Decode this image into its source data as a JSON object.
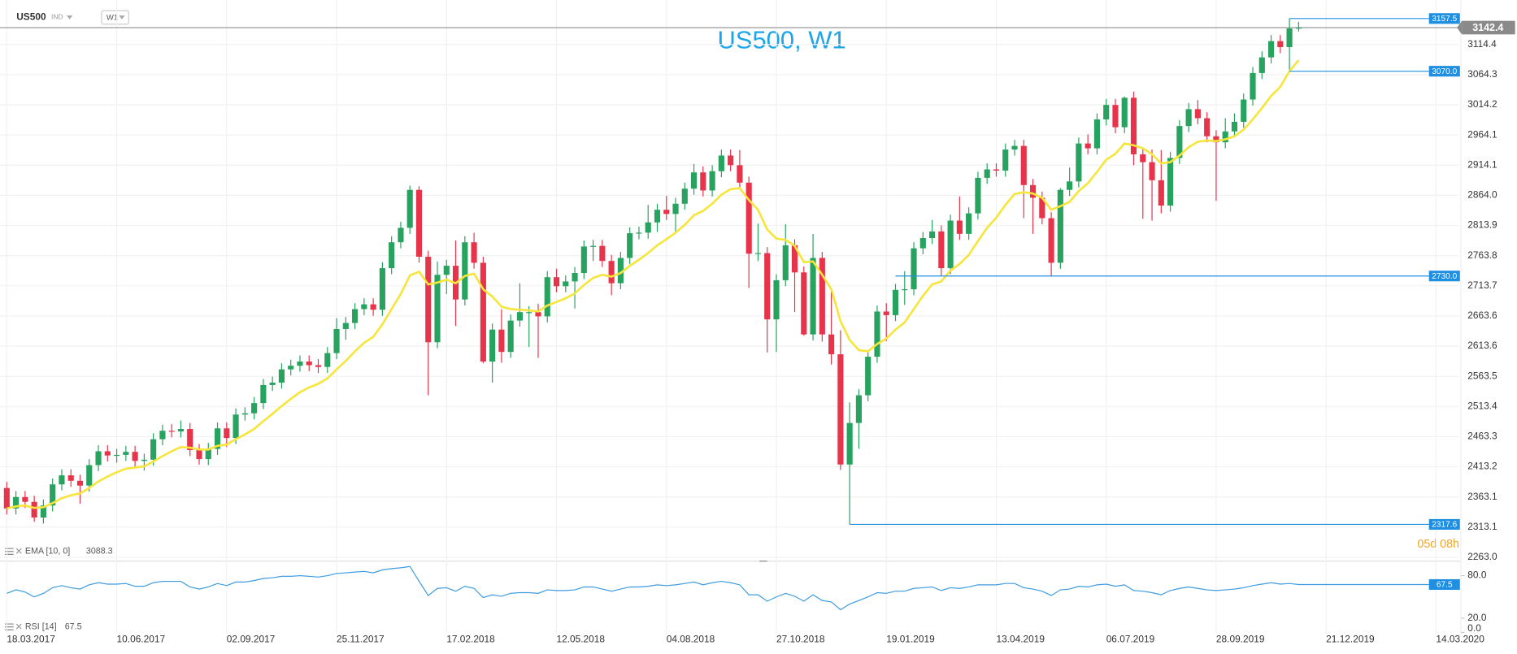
{
  "header": {
    "symbol": "US500",
    "market": "IND",
    "timeframe": "W1"
  },
  "chart_data": {
    "type": "candlestick",
    "title": "US500, W1",
    "xticks": [
      "18.03.2017",
      "10.06.2017",
      "02.09.2017",
      "25.11.2017",
      "17.02.2018",
      "12.05.2018",
      "04.08.2018",
      "27.10.2018",
      "19.01.2019",
      "13.04.2019",
      "06.07.2019",
      "28.09.2019",
      "21.12.2019",
      "14.03.2020"
    ],
    "open": [
      2378,
      2344,
      2363,
      2355,
      2329,
      2349,
      2384,
      2399,
      2390,
      2382,
      2416,
      2439,
      2432,
      2433,
      2438,
      2423,
      2425,
      2459,
      2473,
      2472,
      2476,
      2441,
      2426,
      2443,
      2477,
      2461,
      2500,
      2502,
      2519,
      2549,
      2553,
      2575,
      2581,
      2588,
      2582,
      2579,
      2602,
      2642,
      2652,
      2675,
      2683,
      2674,
      2743,
      2786,
      2810,
      2873,
      2762,
      2620,
      2732,
      2747,
      2691,
      2786,
      2752,
      2588,
      2641,
      2604,
      2656,
      2670,
      2670,
      2663,
      2728,
      2713,
      2721,
      2735,
      2779,
      2780,
      2755,
      2718,
      2760,
      2801,
      2802,
      2819,
      2840,
      2833,
      2850,
      2875,
      2902,
      2872,
      2904,
      2930,
      2914,
      2885,
      2767,
      2768,
      2658,
      2723,
      2781,
      2736,
      2633,
      2760,
      2633,
      2600,
      2417,
      2486,
      2532,
      2596,
      2671,
      2665,
      2707,
      2708,
      2776,
      2793,
      2804,
      2743,
      2822,
      2800,
      2834,
      2893,
      2907,
      2905,
      2940,
      2946,
      2881,
      2860,
      2826,
      2752,
      2873,
      2887,
      2950,
      2942,
      2990,
      3014,
      2977,
      3026,
      2932,
      2919,
      2889,
      2847,
      2926,
      2979,
      3007,
      2992,
      2962,
      2952,
      2970,
      2986,
      3023,
      3067,
      3093,
      3120,
      3110,
      3141
    ],
    "high": [
      2388,
      2373,
      2373,
      2365,
      2359,
      2394,
      2409,
      2409,
      2400,
      2426,
      2449,
      2449,
      2443,
      2448,
      2448,
      2435,
      2469,
      2483,
      2484,
      2490,
      2486,
      2451,
      2453,
      2487,
      2487,
      2510,
      2512,
      2529,
      2559,
      2563,
      2585,
      2591,
      2598,
      2598,
      2592,
      2612,
      2660,
      2662,
      2685,
      2693,
      2693,
      2753,
      2796,
      2820,
      2880,
      2879,
      2772,
      2754,
      2757,
      2789,
      2796,
      2802,
      2762,
      2651,
      2675,
      2666,
      2718,
      2680,
      2684,
      2738,
      2742,
      2731,
      2745,
      2789,
      2790,
      2790,
      2765,
      2770,
      2811,
      2812,
      2848,
      2850,
      2863,
      2860,
      2885,
      2916,
      2912,
      2914,
      2940,
      2940,
      2939,
      2895,
      2817,
      2778,
      2733,
      2816,
      2791,
      2746,
      2800,
      2770,
      2708,
      2640,
      2520,
      2542,
      2606,
      2681,
      2685,
      2717,
      2738,
      2786,
      2803,
      2823,
      2814,
      2832,
      2862,
      2844,
      2903,
      2917,
      2917,
      2950,
      2956,
      2956,
      2891,
      2870,
      2836,
      2876,
      2910,
      2960,
      2965,
      3000,
      3024,
      3024,
      3028,
      3036,
      2942,
      2940,
      2939,
      2936,
      2989,
      3017,
      3022,
      3002,
      2972,
      2992,
      3000,
      3033,
      3077,
      3103,
      3130,
      3130,
      3157.5,
      3152
    ],
    "low": [
      2334,
      2334,
      2345,
      2322,
      2319,
      2339,
      2374,
      2380,
      2352,
      2372,
      2406,
      2422,
      2420,
      2423,
      2413,
      2407,
      2415,
      2449,
      2462,
      2462,
      2431,
      2417,
      2416,
      2433,
      2446,
      2451,
      2490,
      2492,
      2509,
      2539,
      2543,
      2565,
      2571,
      2572,
      2569,
      2569,
      2592,
      2624,
      2642,
      2665,
      2664,
      2664,
      2733,
      2776,
      2800,
      2752,
      2532,
      2610,
      2700,
      2647,
      2681,
      2742,
      2585,
      2553,
      2586,
      2594,
      2646,
      2612,
      2594,
      2653,
      2703,
      2703,
      2676,
      2725,
      2755,
      2745,
      2698,
      2708,
      2750,
      2791,
      2792,
      2803,
      2823,
      2802,
      2840,
      2865,
      2862,
      2862,
      2894,
      2904,
      2875,
      2710,
      2755,
      2603,
      2604,
      2713,
      2670,
      2631,
      2623,
      2621,
      2583,
      2408,
      2317.6,
      2443,
      2522,
      2586,
      2622,
      2655,
      2682,
      2698,
      2766,
      2783,
      2730,
      2733,
      2790,
      2790,
      2824,
      2883,
      2895,
      2895,
      2930,
      2826,
      2800,
      2816,
      2729,
      2742,
      2863,
      2877,
      2932,
      2932,
      2980,
      2967,
      2967,
      2914,
      2825,
      2822,
      2834,
      2837,
      2916,
      2969,
      2982,
      2952,
      2855,
      2942,
      2960,
      2976,
      3013,
      3057,
      3083,
      3100,
      3070,
      3136
    ],
    "close": [
      2344,
      2363,
      2355,
      2329,
      2349,
      2384,
      2399,
      2390,
      2382,
      2416,
      2439,
      2432,
      2433,
      2438,
      2423,
      2425,
      2459,
      2473,
      2472,
      2476,
      2441,
      2426,
      2443,
      2477,
      2461,
      2500,
      2502,
      2519,
      2549,
      2553,
      2575,
      2581,
      2588,
      2582,
      2579,
      2602,
      2642,
      2652,
      2675,
      2683,
      2674,
      2743,
      2786,
      2810,
      2873,
      2762,
      2620,
      2732,
      2747,
      2691,
      2786,
      2752,
      2588,
      2641,
      2604,
      2656,
      2670,
      2670,
      2663,
      2728,
      2713,
      2721,
      2735,
      2779,
      2780,
      2755,
      2718,
      2760,
      2801,
      2802,
      2819,
      2840,
      2833,
      2850,
      2875,
      2902,
      2872,
      2904,
      2930,
      2914,
      2885,
      2767,
      2768,
      2658,
      2723,
      2781,
      2736,
      2633,
      2760,
      2633,
      2600,
      2417,
      2486,
      2532,
      2596,
      2671,
      2665,
      2707,
      2708,
      2776,
      2793,
      2804,
      2743,
      2822,
      2800,
      2834,
      2893,
      2907,
      2905,
      2940,
      2946,
      2881,
      2860,
      2826,
      2752,
      2873,
      2887,
      2950,
      2942,
      2990,
      3014,
      2977,
      3026,
      2932,
      2919,
      2889,
      2847,
      2926,
      2979,
      3007,
      2992,
      2962,
      2952,
      2970,
      2986,
      3023,
      3067,
      3093,
      3120,
      3110,
      3141,
      3142.4
    ],
    "up_color": "#27a35f",
    "down_color": "#e8344b",
    "ylim": [
      2256.6,
      3175.4
    ],
    "yticks": [
      3114.4,
      3064.3,
      3014.2,
      2964.1,
      2914.1,
      {
        "value": 2864.0,
        "label": "2864.0"
      },
      2813.9,
      2763.8,
      2713.7,
      2663.6,
      2613.6,
      2563.5,
      2513.4,
      2463.3,
      2413.2,
      2363.1,
      2313.1,
      {
        "value": 2263.0,
        "label": "2263.0"
      }
    ],
    "grid": true,
    "levels": [
      3157.5,
      {
        "value": 3070.0,
        "label": "3070.0"
      },
      {
        "value": 2730.0,
        "label": "2730.0"
      },
      2317.6
    ],
    "level_color": "#1e8fe1",
    "countdown": "05d 08h",
    "ema": {
      "name": "EMA [10, 0]",
      "color": "#f7e53b",
      "values": [
        2344,
        2347.5,
        2349,
        2345,
        2346,
        2353,
        2361,
        2366,
        2369,
        2378,
        2389,
        2397,
        2404,
        2410,
        2412,
        2414,
        2422,
        2431,
        2439,
        2446,
        2445,
        2442,
        2442,
        2448,
        2450,
        2459,
        2467,
        2476,
        2489,
        2501,
        2514,
        2526,
        2537,
        2545,
        2551,
        2560,
        2575,
        2589,
        2605,
        2619,
        2629,
        2650,
        2675,
        2700,
        2731,
        2737,
        2716,
        2719,
        2724,
        2718,
        2730,
        2734,
        2708,
        2696,
        2679,
        2675,
        2674,
        2673,
        2671,
        2681,
        2687,
        2693,
        2701,
        2715,
        2727,
        2732,
        2729,
        2735,
        2747,
        2757,
        2768,
        2781,
        2791,
        2802,
        2815,
        2831,
        2838,
        2850,
        2865,
        2874,
        2876,
        2856,
        2840,
        2807,
        2792,
        2790,
        2780,
        2753,
        2754,
        2732,
        2708,
        2655,
        2624,
        2607,
        2605,
        2617,
        2626,
        2641,
        2653,
        2675,
        2697,
        2716,
        2721,
        2739,
        2750,
        2765,
        2788,
        2810,
        2827,
        2848,
        2866,
        2869,
        2867,
        2860,
        2840,
        2846,
        2853,
        2871,
        2884,
        2903,
        2923,
        2933,
        2950,
        2947,
        2942,
        2932,
        2917,
        2919,
        2930,
        2944,
        2953,
        2955,
        2954,
        2957,
        2962,
        2973,
        2990,
        3009,
        3029,
        3044,
        3070,
        3088.3
      ]
    },
    "rsi": {
      "name": "RSI [14]",
      "color": "#3d9be0",
      "ylim": [
        0,
        95
      ],
      "yticks": [
        {
          "value": 80,
          "label": "80.0"
        },
        {
          "value": 20,
          "label": "20.0"
        },
        {
          "value": 0,
          "label": "0.0"
        }
      ],
      "values": [
        55,
        60,
        57,
        50,
        55,
        63,
        66,
        63,
        61,
        67,
        70,
        68,
        68,
        69,
        65,
        65,
        70,
        72,
        72,
        72,
        64,
        61,
        64,
        69,
        66,
        71,
        71,
        73,
        76,
        77,
        79,
        79,
        80,
        79,
        78,
        80,
        83,
        84,
        85,
        86,
        84,
        88,
        90,
        91,
        93,
        72,
        52,
        62,
        63,
        58,
        65,
        62,
        49,
        53,
        51,
        55,
        56,
        56,
        55,
        60,
        59,
        59,
        60,
        64,
        64,
        61,
        58,
        61,
        64,
        64,
        65,
        67,
        66,
        67,
        69,
        71,
        67,
        70,
        72,
        70,
        67,
        53,
        53,
        44,
        50,
        55,
        51,
        44,
        53,
        45,
        43,
        32,
        40,
        45,
        50,
        56,
        55,
        58,
        58,
        62,
        63,
        64,
        59,
        63,
        62,
        64,
        67,
        67,
        67,
        69,
        69,
        63,
        61,
        58,
        52,
        60,
        61,
        65,
        64,
        67,
        68,
        65,
        67,
        59,
        58,
        56,
        53,
        59,
        62,
        64,
        62,
        60,
        59,
        60,
        61,
        63,
        66,
        68,
        70,
        68,
        69,
        67.5
      ]
    }
  }
}
